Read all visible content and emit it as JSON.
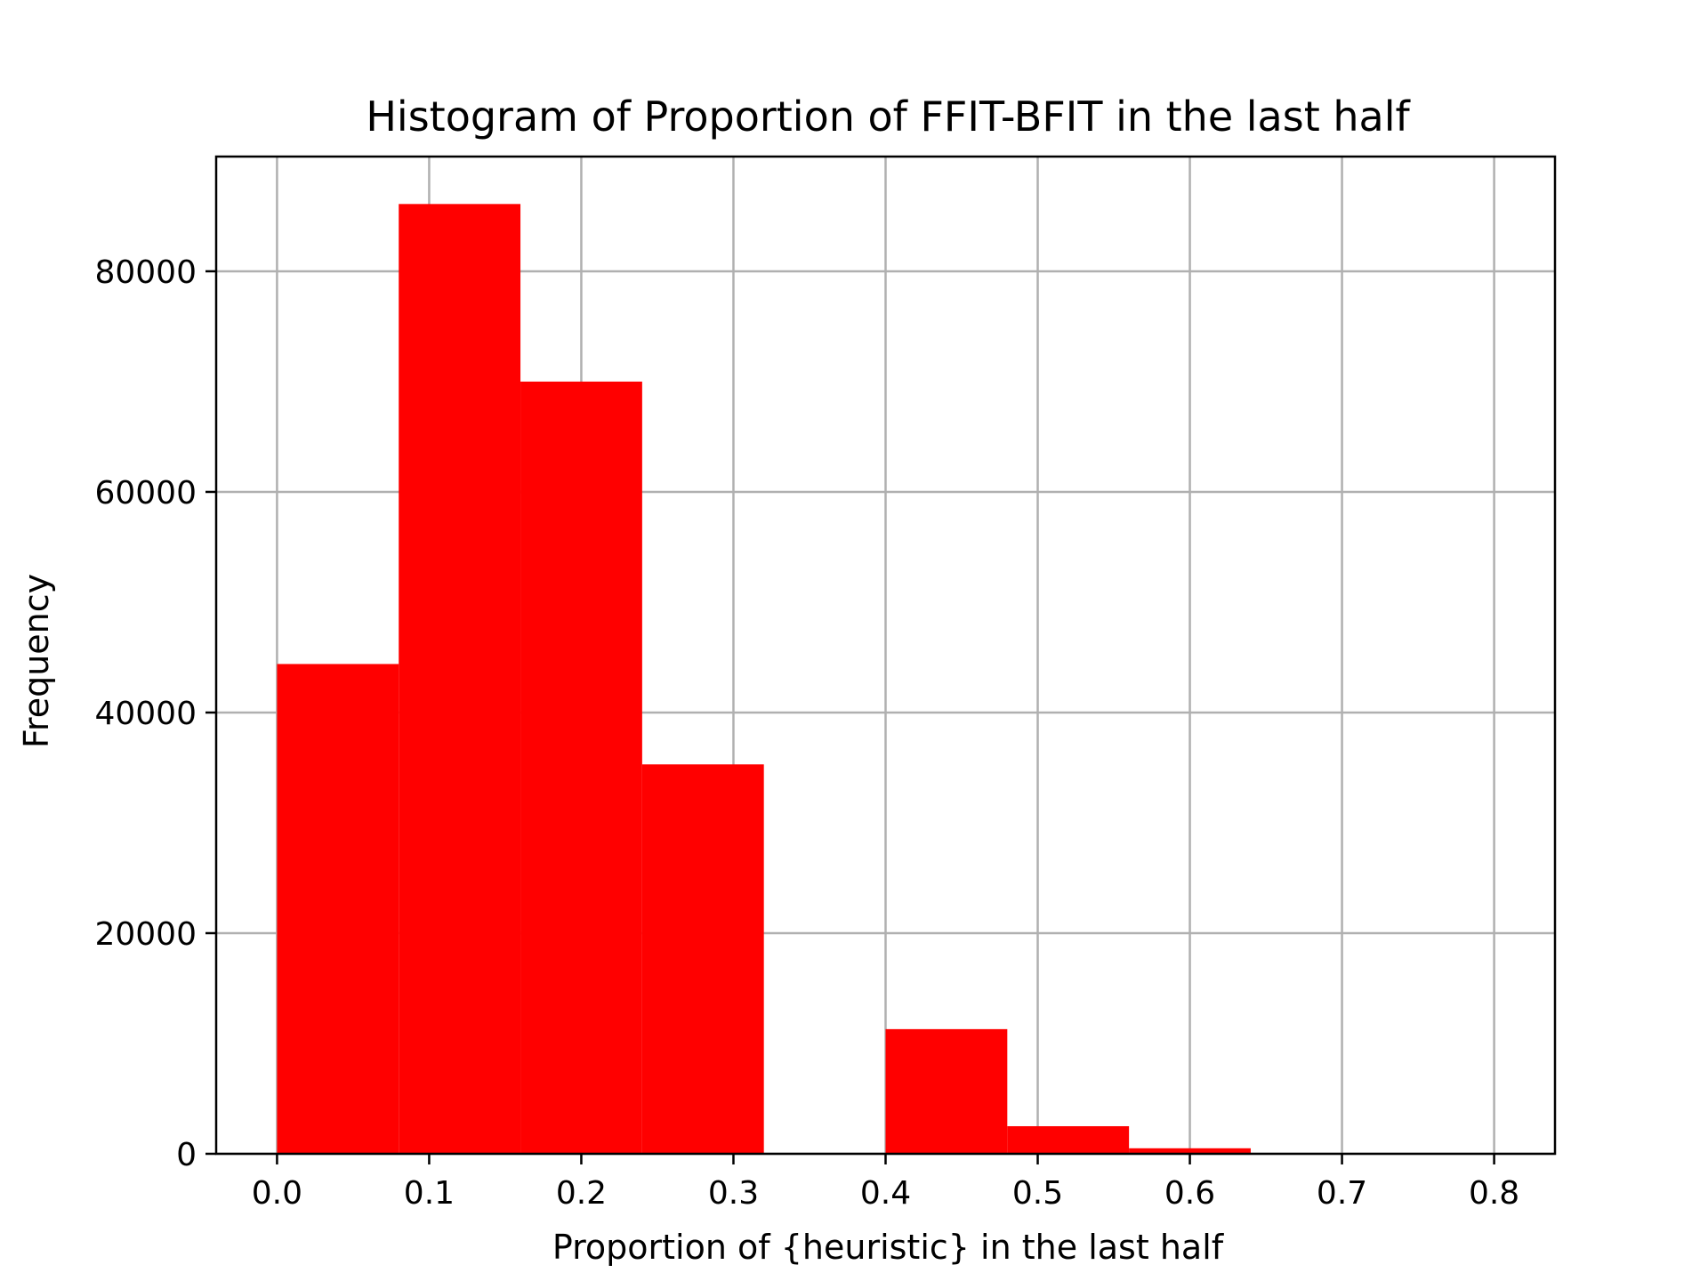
{
  "chart_data": {
    "type": "bar",
    "title": "Histogram of Proportion of FFIT-BFIT in the last half",
    "xlabel": "Proportion of {heuristic} in the last half",
    "ylabel": "Frequency",
    "xlim": [
      -0.04,
      0.84
    ],
    "ylim": [
      0,
      90400
    ],
    "x_ticks": [
      0.0,
      0.1,
      0.2,
      0.3,
      0.4,
      0.5,
      0.6,
      0.7,
      0.8
    ],
    "x_tick_labels": [
      "0.0",
      "0.1",
      "0.2",
      "0.3",
      "0.4",
      "0.5",
      "0.6",
      "0.7",
      "0.8"
    ],
    "y_ticks": [
      0,
      20000,
      40000,
      60000,
      80000
    ],
    "y_tick_labels": [
      "0",
      "20000",
      "40000",
      "60000",
      "80000"
    ],
    "bins": [
      {
        "x0": 0.0,
        "x1": 0.08,
        "value": 44400
      },
      {
        "x0": 0.08,
        "x1": 0.16,
        "value": 86100
      },
      {
        "x0": 0.16,
        "x1": 0.24,
        "value": 70000
      },
      {
        "x0": 0.24,
        "x1": 0.32,
        "value": 35300
      },
      {
        "x0": 0.32,
        "x1": 0.4,
        "value": 0
      },
      {
        "x0": 0.4,
        "x1": 0.48,
        "value": 11300
      },
      {
        "x0": 0.48,
        "x1": 0.56,
        "value": 2500
      },
      {
        "x0": 0.56,
        "x1": 0.64,
        "value": 500
      },
      {
        "x0": 0.64,
        "x1": 0.72,
        "value": 0
      },
      {
        "x0": 0.72,
        "x1": 0.8,
        "value": 0
      }
    ],
    "grid": true,
    "bar_color": "#ff0000"
  }
}
